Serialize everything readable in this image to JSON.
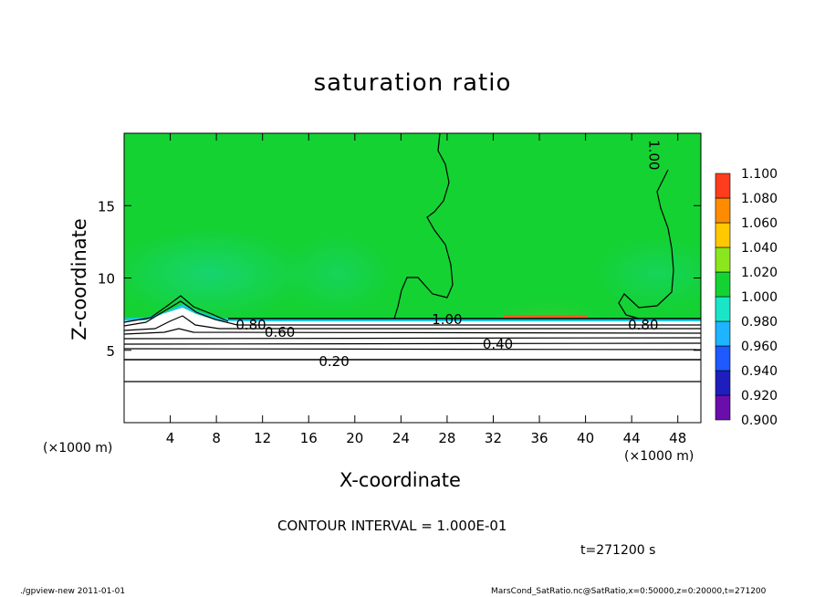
{
  "chart_data": {
    "type": "heatmap",
    "title": "saturation ratio",
    "xlabel": "X-coordinate",
    "ylabel": "Z-coordinate",
    "x_unit": "(×1000 m)",
    "xlim": [
      0,
      50
    ],
    "ylim": [
      0,
      20
    ],
    "x_ticks": [
      4,
      8,
      12,
      16,
      20,
      24,
      28,
      32,
      36,
      40,
      44,
      48
    ],
    "y_ticks": [
      5,
      10,
      15
    ],
    "colorbar": {
      "levels": [
        0.9,
        0.92,
        0.94,
        0.96,
        0.98,
        1.0,
        1.02,
        1.04,
        1.06,
        1.08,
        1.1
      ],
      "labels": [
        "0.900",
        "0.920",
        "0.940",
        "0.960",
        "0.980",
        "1.000",
        "1.020",
        "1.040",
        "1.060",
        "1.080",
        "1.100"
      ],
      "colors": [
        "#6a0dad",
        "#1e1ebe",
        "#1e5aff",
        "#1eb4ff",
        "#19e6c8",
        "#14d232",
        "#8ce61e",
        "#ffc800",
        "#ff8c00",
        "#ff3c1e",
        "#ff9696"
      ]
    },
    "contour_labels": [
      {
        "text": "0.20",
        "x": 18.2,
        "y": 4.3
      },
      {
        "text": "0.40",
        "x": 32.4,
        "y": 5.5
      },
      {
        "text": "0.60",
        "x": 13.5,
        "y": 6.3
      },
      {
        "text": "0.80",
        "x": 11.0,
        "y": 6.8
      },
      {
        "text": "0.80",
        "x": 45.0,
        "y": 6.8
      },
      {
        "text": "1.00",
        "x": 28.0,
        "y": 7.2
      },
      {
        "text": "1.00",
        "x": 46.0,
        "y": 18.5
      }
    ],
    "contour_interval": "CONTOUR INTERVAL = 1.000E-01",
    "time": "t=271200 s",
    "grid": false
  },
  "footer": {
    "left": "./gpview-new  2011-01-01",
    "right": "MarsCond_SatRatio.nc@SatRatio,x=0:50000,z=0:20000,t=271200"
  }
}
